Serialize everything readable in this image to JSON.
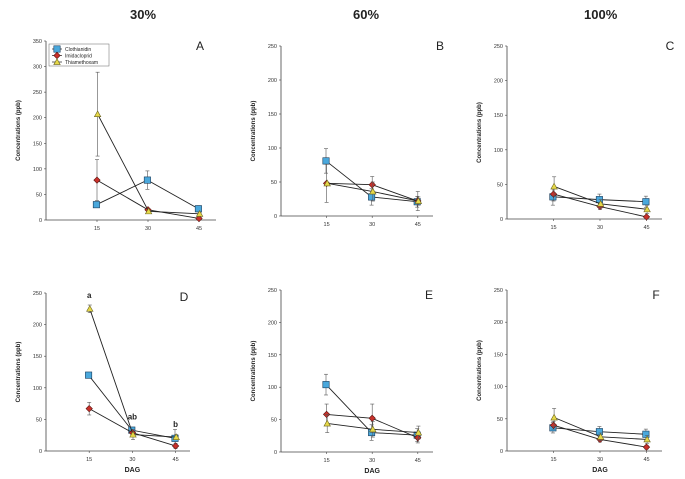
{
  "figure": {
    "column_titles": [
      "30%",
      "60%",
      "100%"
    ]
  },
  "chart_data": [
    {
      "type": "line",
      "panel": "A",
      "column": "30%",
      "x": [
        15,
        30,
        45
      ],
      "xlabel": "",
      "ylabel": "Concentrations (ppb)",
      "ylim": [
        0,
        350
      ],
      "yticks": [
        0,
        50,
        100,
        150,
        200,
        250,
        300,
        350
      ],
      "xticks": [
        15,
        30,
        45
      ],
      "legend": {
        "position": "top-left",
        "entries": [
          "Clothianidin",
          "Imidacloprid",
          "Thiamethoxam"
        ]
      },
      "series": [
        {
          "name": "Clothianidin",
          "color": "#4aa8dc",
          "marker": "square",
          "values": [
            30,
            78,
            22
          ],
          "errors": [
            0,
            18,
            6
          ]
        },
        {
          "name": "Imidacloprid",
          "color": "#c8302a",
          "marker": "diamond",
          "values": [
            78,
            20,
            3
          ],
          "errors": [
            40,
            0,
            3
          ]
        },
        {
          "name": "Thiamethoxam",
          "color": "#e6d848",
          "marker": "triangle",
          "values": [
            207,
            17,
            12
          ],
          "errors": [
            82,
            0,
            3
          ]
        }
      ],
      "annotations": []
    },
    {
      "type": "line",
      "panel": "B",
      "column": "60%",
      "x": [
        15,
        30,
        45
      ],
      "xlabel": "",
      "ylabel": "Concentrations (ppb)",
      "ylim": [
        0,
        250
      ],
      "yticks": [
        0,
        50,
        100,
        150,
        200,
        250
      ],
      "xticks": [
        15,
        30,
        45
      ],
      "legend": null,
      "series": [
        {
          "name": "Clothianidin",
          "color": "#4aa8dc",
          "marker": "square",
          "values": [
            81,
            28,
            21
          ],
          "errors": [
            18,
            12,
            8
          ]
        },
        {
          "name": "Imidacloprid",
          "color": "#c8302a",
          "marker": "diamond",
          "values": [
            48,
            46,
            22
          ],
          "errors": [
            28,
            12,
            14
          ]
        },
        {
          "name": "Thiamethoxam",
          "color": "#e6d848",
          "marker": "triangle",
          "values": [
            48,
            36,
            22
          ],
          "errors": [
            0,
            14,
            6
          ]
        }
      ],
      "annotations": []
    },
    {
      "type": "line",
      "panel": "C",
      "column": "100%",
      "x": [
        15,
        30,
        45
      ],
      "xlabel": "",
      "ylabel": "Concentrations (ppb)",
      "ylim": [
        0,
        250
      ],
      "yticks": [
        0,
        50,
        100,
        150,
        200,
        250
      ],
      "xticks": [
        15,
        30,
        45
      ],
      "legend": null,
      "series": [
        {
          "name": "Clothianidin",
          "color": "#4aa8dc",
          "marker": "square",
          "values": [
            32,
            28,
            25
          ],
          "errors": [
            12,
            8,
            8
          ]
        },
        {
          "name": "Imidacloprid",
          "color": "#c8302a",
          "marker": "diamond",
          "values": [
            36,
            18,
            3
          ],
          "errors": [
            10,
            4,
            0
          ]
        },
        {
          "name": "Thiamethoxam",
          "color": "#e6d848",
          "marker": "triangle",
          "values": [
            47,
            22,
            14
          ],
          "errors": [
            14,
            6,
            6
          ]
        }
      ],
      "annotations": []
    },
    {
      "type": "line",
      "panel": "D",
      "column": "30%",
      "x": [
        15,
        30,
        45
      ],
      "xlabel": "DAG",
      "ylabel": "Concentrations (ppb)",
      "ylim": [
        0,
        250
      ],
      "yticks": [
        0,
        50,
        100,
        150,
        200,
        250
      ],
      "xticks": [
        15,
        30,
        45
      ],
      "legend": null,
      "series": [
        {
          "name": "Clothianidin",
          "color": "#4aa8dc",
          "marker": "square",
          "values": [
            120,
            33,
            20
          ],
          "errors": [
            0,
            4,
            14
          ]
        },
        {
          "name": "Imidacloprid",
          "color": "#c8302a",
          "marker": "diamond",
          "values": [
            67,
            29,
            8
          ],
          "errors": [
            10,
            3,
            4
          ]
        },
        {
          "name": "Thiamethoxam",
          "color": "#e6d848",
          "marker": "triangle",
          "values": [
            225,
            26,
            22
          ],
          "errors": [
            6,
            8,
            4
          ]
        }
      ],
      "annotations": [
        {
          "text": "a",
          "x": 15,
          "y": 242
        },
        {
          "text": "ab",
          "x": 30,
          "y": 50
        },
        {
          "text": "b",
          "x": 45,
          "y": 38
        }
      ]
    },
    {
      "type": "line",
      "panel": "E",
      "column": "60%",
      "x": [
        15,
        30,
        45
      ],
      "xlabel": "DAG",
      "ylabel": "Concentrations (ppb)",
      "ylim": [
        0,
        250
      ],
      "yticks": [
        0,
        50,
        100,
        150,
        200,
        250
      ],
      "xticks": [
        15,
        30,
        45
      ],
      "legend": null,
      "series": [
        {
          "name": "Clothianidin",
          "color": "#4aa8dc",
          "marker": "square",
          "values": [
            104,
            30,
            26
          ],
          "errors": [
            16,
            12,
            10
          ]
        },
        {
          "name": "Imidacloprid",
          "color": "#c8302a",
          "marker": "diamond",
          "values": [
            58,
            52,
            22
          ],
          "errors": [
            16,
            22,
            8
          ]
        },
        {
          "name": "Thiamethoxam",
          "color": "#e6d848",
          "marker": "triangle",
          "values": [
            44,
            35,
            30
          ],
          "errors": [
            14,
            12,
            10
          ]
        }
      ],
      "annotations": []
    },
    {
      "type": "line",
      "panel": "F",
      "column": "100%",
      "x": [
        15,
        30,
        45
      ],
      "xlabel": "DAG",
      "ylabel": "Concentrations (ppb)",
      "ylim": [
        0,
        250
      ],
      "yticks": [
        0,
        50,
        100,
        150,
        200,
        250
      ],
      "xticks": [
        15,
        30,
        45
      ],
      "legend": null,
      "series": [
        {
          "name": "Clothianidin",
          "color": "#4aa8dc",
          "marker": "square",
          "values": [
            36,
            30,
            26
          ],
          "errors": [
            8,
            8,
            8
          ]
        },
        {
          "name": "Imidacloprid",
          "color": "#c8302a",
          "marker": "diamond",
          "values": [
            40,
            18,
            6
          ],
          "errors": [
            6,
            4,
            3
          ]
        },
        {
          "name": "Thiamethoxam",
          "color": "#e6d848",
          "marker": "triangle",
          "values": [
            52,
            22,
            18
          ],
          "errors": [
            14,
            6,
            6
          ]
        }
      ],
      "annotations": []
    }
  ]
}
